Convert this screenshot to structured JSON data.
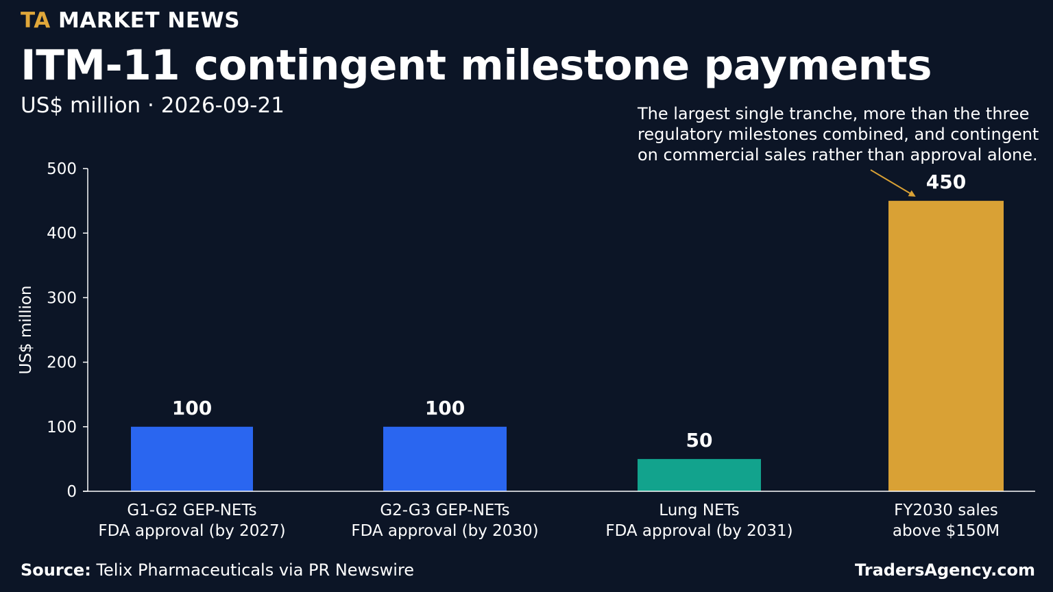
{
  "header": {
    "brand_prefix": "TA",
    "brand_name": "MARKET NEWS",
    "title": "ITM-11 contingent milestone payments",
    "subtitle": "US$ million · 2026-09-21"
  },
  "annotation": {
    "lines": [
      "The largest single tranche, more than the three",
      "regulatory milestones combined, and contingent",
      "on commercial sales rather than approval alone."
    ]
  },
  "footer": {
    "source_label": "Source:",
    "source_text": "Telix Pharmaceuticals via PR Newswire",
    "site": "TradersAgency.com"
  },
  "colors": {
    "background": "#0c1526",
    "accent": "#e0a73a",
    "regulatory_bar": "#2a66f0",
    "lung_bar": "#12a38d",
    "sales_bar": "#d9a135",
    "axis": "#ffffff"
  },
  "chart_data": {
    "type": "bar",
    "title": "ITM-11 contingent milestone payments",
    "ylabel": "US$ million",
    "xlabel": "",
    "ylim": [
      0,
      500
    ],
    "yticks": [
      0,
      100,
      200,
      300,
      400,
      500
    ],
    "grid": false,
    "categories": [
      [
        "G1-G2 GEP-NETs",
        "FDA approval (by 2027)"
      ],
      [
        "G2-G3 GEP-NETs",
        "FDA approval (by 2030)"
      ],
      [
        "Lung NETs",
        "FDA approval (by 2031)"
      ],
      [
        "FY2030 sales",
        "above $150M"
      ]
    ],
    "values": [
      100,
      100,
      50,
      450
    ],
    "value_labels": [
      "100",
      "100",
      "50",
      "450"
    ],
    "bar_colors": [
      "#2a66f0",
      "#2a66f0",
      "#12a38d",
      "#d9a135"
    ],
    "annotation_target_index": 3
  }
}
